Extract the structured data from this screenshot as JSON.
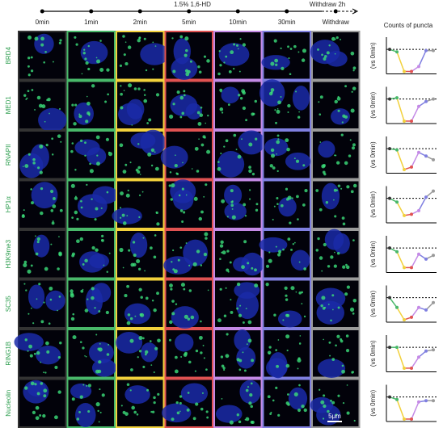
{
  "header": {
    "treatment": "1.5% 1,6-HD",
    "withdraw": "Withdraw 2h"
  },
  "columns": [
    "0min",
    "1min",
    "2min",
    "5min",
    "10min",
    "30min",
    "Withdraw"
  ],
  "column_colors": [
    "#333333",
    "#49b86a",
    "#f2d13c",
    "#e05252",
    "#c48ae6",
    "#7f7fe0",
    "#9a9a9a"
  ],
  "rows": [
    "BRD4",
    "MED1",
    "RNAPII",
    "HP1α",
    "H3K9me3",
    "SC35",
    "RING1B",
    "Nucleolin"
  ],
  "panel_title": "Counts of puncta",
  "y_label": "(vs 0min)",
  "scale_bar": "5μm",
  "chart": {
    "ylim": [
      0,
      1.5
    ],
    "reference": 1,
    "series": [
      [
        1,
        0.9,
        0.1,
        0.1,
        0.3,
        0.95,
        0.95
      ],
      [
        1,
        1.05,
        0.1,
        0.1,
        0.7,
        0.9,
        1
      ],
      [
        1,
        0.95,
        0.15,
        0.25,
        0.85,
        0.7,
        0.55
      ],
      [
        1,
        0.85,
        0.3,
        0.35,
        0.5,
        1.05,
        1.3
      ],
      [
        1,
        0.85,
        0.2,
        0.2,
        0.75,
        0.55,
        0.7
      ],
      [
        1,
        0.6,
        0.1,
        0.2,
        0.6,
        0.5,
        0.8
      ],
      [
        1,
        1,
        0.15,
        0.15,
        0.6,
        0.85,
        0.9
      ],
      [
        1,
        0.9,
        0.1,
        0.1,
        0.8,
        0.85,
        0.85
      ]
    ]
  }
}
